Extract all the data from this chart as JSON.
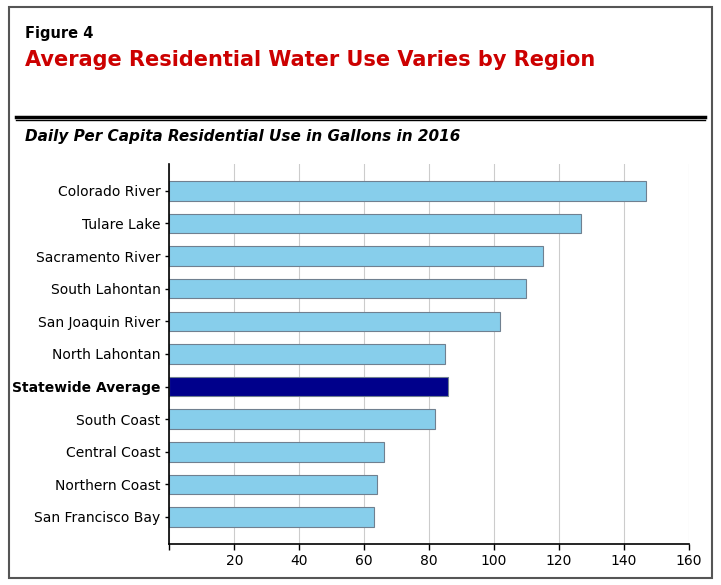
{
  "categories": [
    "San Francisco Bay",
    "Northern Coast",
    "Central Coast",
    "South Coast",
    "Statewide Average",
    "North Lahontan",
    "San Joaquin River",
    "South Lahontan",
    "Sacramento River",
    "Tulare Lake",
    "Colorado River"
  ],
  "values": [
    63,
    64,
    66,
    82,
    86,
    85,
    102,
    110,
    115,
    127,
    147
  ],
  "bar_colors": [
    "#87CEEB",
    "#87CEEB",
    "#87CEEB",
    "#87CEEB",
    "#00008B",
    "#87CEEB",
    "#87CEEB",
    "#87CEEB",
    "#87CEEB",
    "#87CEEB",
    "#87CEEB"
  ],
  "bar_edge_color": "#708090",
  "title_label": "Figure 4",
  "title_main": "Average Residential Water Use Varies by Region",
  "subtitle": "Daily Per Capita Residential Use in Gallons in 2016",
  "xlim": [
    0,
    160
  ],
  "xticks": [
    0,
    20,
    40,
    60,
    80,
    100,
    120,
    140,
    160
  ],
  "background_color": "#ffffff",
  "statewide_label": "Statewide Average",
  "title_color": "#cc0000",
  "outer_border_color": "#888888",
  "separator_color": "#333333",
  "grid_color": "#cccccc"
}
